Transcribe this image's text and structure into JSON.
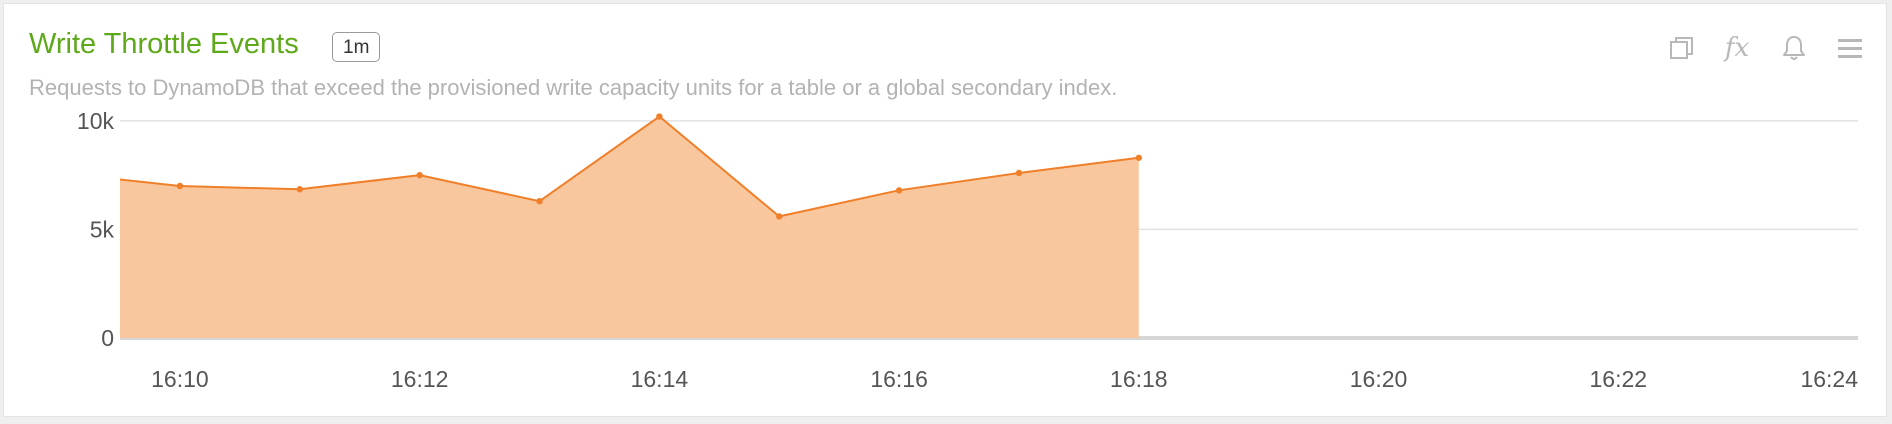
{
  "panel": {
    "title": "Write Throttle Events",
    "interval_badge": "1m",
    "description": "Requests to DynamoDB that exceed the provisioned write capacity units for a table or a global secondary index.",
    "toolbar": [
      "copy-icon",
      "fx-icon",
      "bell-icon",
      "menu-icon"
    ],
    "fx_label": "fx"
  },
  "colors": {
    "title": "#5ea91a",
    "series_line": "#f07f2a",
    "series_fill": "#f8c79e",
    "grid": "#e2e2e2"
  },
  "chart_data": {
    "type": "area",
    "x": [
      "16:09:30",
      "16:10",
      "16:11",
      "16:12",
      "16:13",
      "16:14",
      "16:15",
      "16:16",
      "16:17",
      "16:18"
    ],
    "series": [
      {
        "values": [
          7300,
          7000,
          6850,
          7500,
          6300,
          10200,
          5600,
          6800,
          7600,
          8300
        ]
      }
    ],
    "x_ticks": [
      "16:10",
      "16:12",
      "16:14",
      "16:16",
      "16:18",
      "16:20",
      "16:22",
      "16:24"
    ],
    "y_ticks": [
      "0",
      "5k",
      "10k"
    ],
    "y_tick_values": [
      0,
      5000,
      10000
    ],
    "ylim": [
      0,
      10500
    ],
    "xlim": [
      "16:09:30",
      "16:24"
    ],
    "grid": true,
    "legend": "none"
  }
}
